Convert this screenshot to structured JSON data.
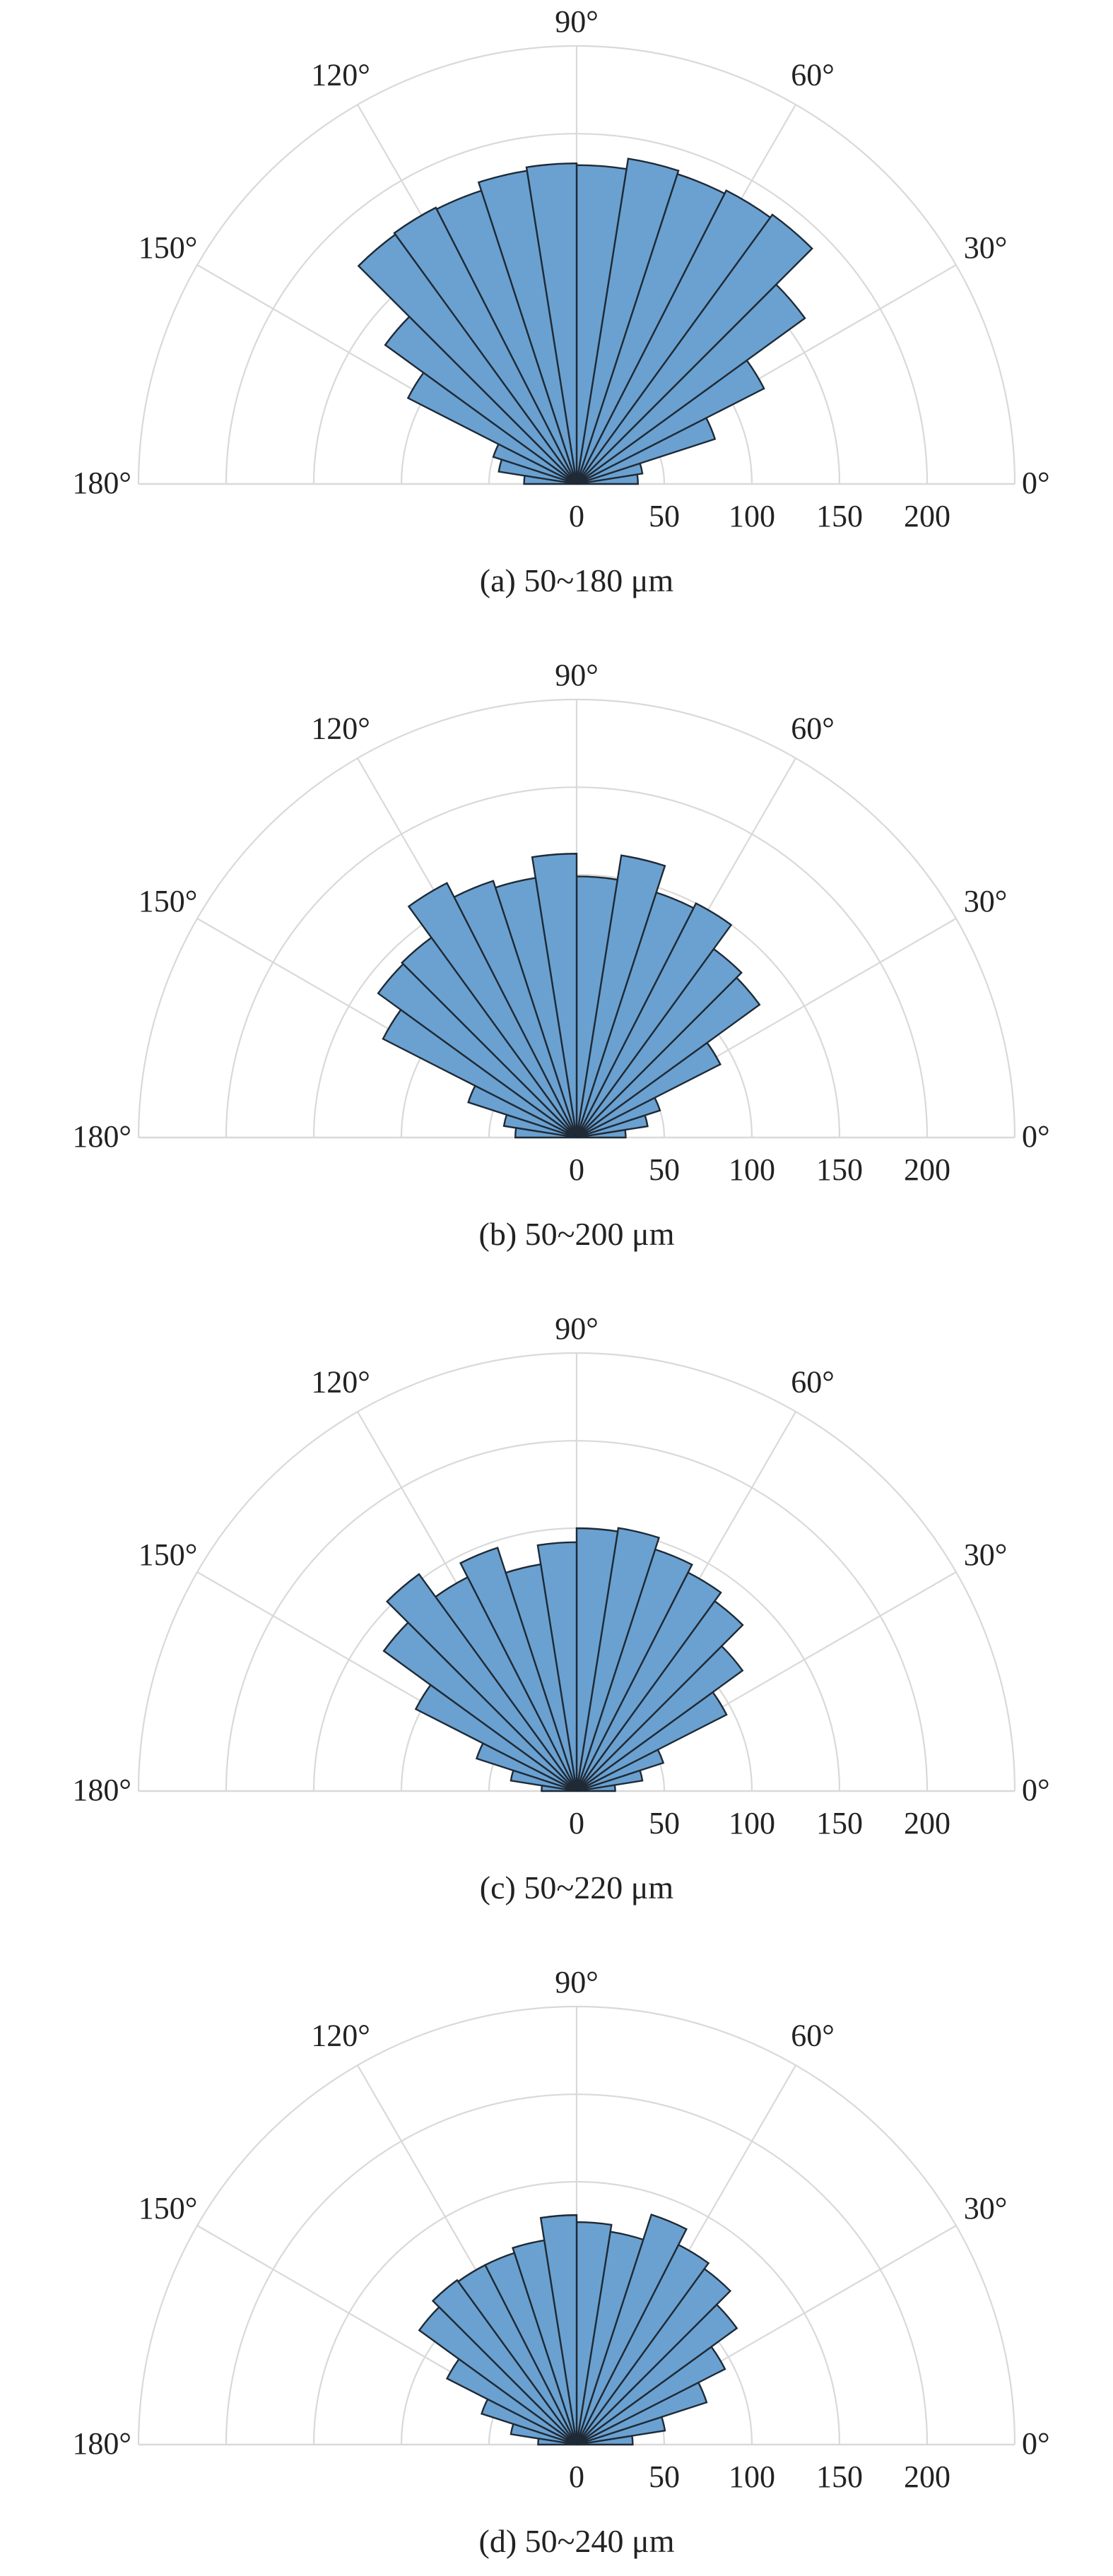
{
  "colors": {
    "bar_fill": "#6aa1d0",
    "bar_stroke": "#1f2a36",
    "grid": "#d9d9d9",
    "text": "#222222"
  },
  "chart_data": [
    {
      "type": "polar-histogram",
      "caption": "(a) 50~180 μm",
      "theta_range_deg": [
        0,
        180
      ],
      "theta_ticks": [
        "0°",
        "30°",
        "60°",
        "90°",
        "120°",
        "150°",
        "180°"
      ],
      "r_ticks": [
        "0",
        "50",
        "100",
        "150",
        "200"
      ],
      "r_max": 250,
      "bin_width_deg": 9,
      "bin_start_deg": [
        0,
        9,
        18,
        27,
        36,
        45,
        54,
        63,
        72,
        81,
        90,
        99,
        108,
        117,
        126,
        135,
        144,
        153,
        162,
        171
      ],
      "values": [
        35,
        38,
        83,
        120,
        161,
        190,
        188,
        186,
        188,
        182,
        183,
        181,
        176,
        177,
        176,
        135,
        108,
        50,
        45,
        30
      ]
    },
    {
      "type": "polar-histogram",
      "caption": "(b) 50~200 μm",
      "theta_range_deg": [
        0,
        180
      ],
      "theta_ticks": [
        "0°",
        "30°",
        "60°",
        "90°",
        "120°",
        "150°",
        "180°"
      ],
      "r_ticks": [
        "0",
        "50",
        "100",
        "150",
        "200"
      ],
      "r_max": 250,
      "bin_width_deg": 9,
      "bin_start_deg": [
        0,
        9,
        18,
        27,
        36,
        45,
        54,
        63,
        72,
        81,
        90,
        99,
        108,
        117,
        126,
        135,
        144,
        153,
        162,
        171
      ],
      "values": [
        28,
        41,
        50,
        92,
        129,
        133,
        150,
        147,
        163,
        149,
        162,
        150,
        154,
        163,
        141,
        140,
        124,
        65,
        42,
        35
      ]
    },
    {
      "type": "polar-histogram",
      "caption": "(c) 50~220 μm",
      "theta_range_deg": [
        0,
        180
      ],
      "theta_ticks": [
        "0°",
        "30°",
        "60°",
        "90°",
        "120°",
        "150°",
        "180°"
      ],
      "r_ticks": [
        "0",
        "50",
        "100",
        "150",
        "200"
      ],
      "r_max": 250,
      "bin_width_deg": 9,
      "bin_start_deg": [
        0,
        9,
        18,
        27,
        36,
        45,
        54,
        63,
        72,
        81,
        90,
        99,
        108,
        117,
        126,
        135,
        144,
        153,
        162,
        171
      ],
      "values": [
        22,
        38,
        52,
        96,
        117,
        134,
        140,
        145,
        152,
        150,
        142,
        131,
        146,
        137,
        153,
        136,
        103,
        60,
        38,
        20
      ]
    },
    {
      "type": "polar-histogram",
      "caption": "(d) 50~240 μm",
      "theta_range_deg": [
        0,
        180
      ],
      "theta_ticks": [
        "0°",
        "30°",
        "60°",
        "90°",
        "120°",
        "150°",
        "180°"
      ],
      "r_ticks": [
        "0",
        "50",
        "100",
        "150",
        "200"
      ],
      "r_max": 250,
      "bin_width_deg": 9,
      "bin_start_deg": [
        0,
        9,
        18,
        27,
        36,
        45,
        54,
        63,
        72,
        81,
        90,
        99,
        108,
        117,
        126,
        135,
        144,
        153,
        162,
        171
      ],
      "values": [
        32,
        51,
        78,
        95,
        113,
        124,
        128,
        138,
        123,
        127,
        131,
        118,
        115,
        115,
        116,
        111,
        83,
        57,
        38,
        22
      ]
    }
  ]
}
